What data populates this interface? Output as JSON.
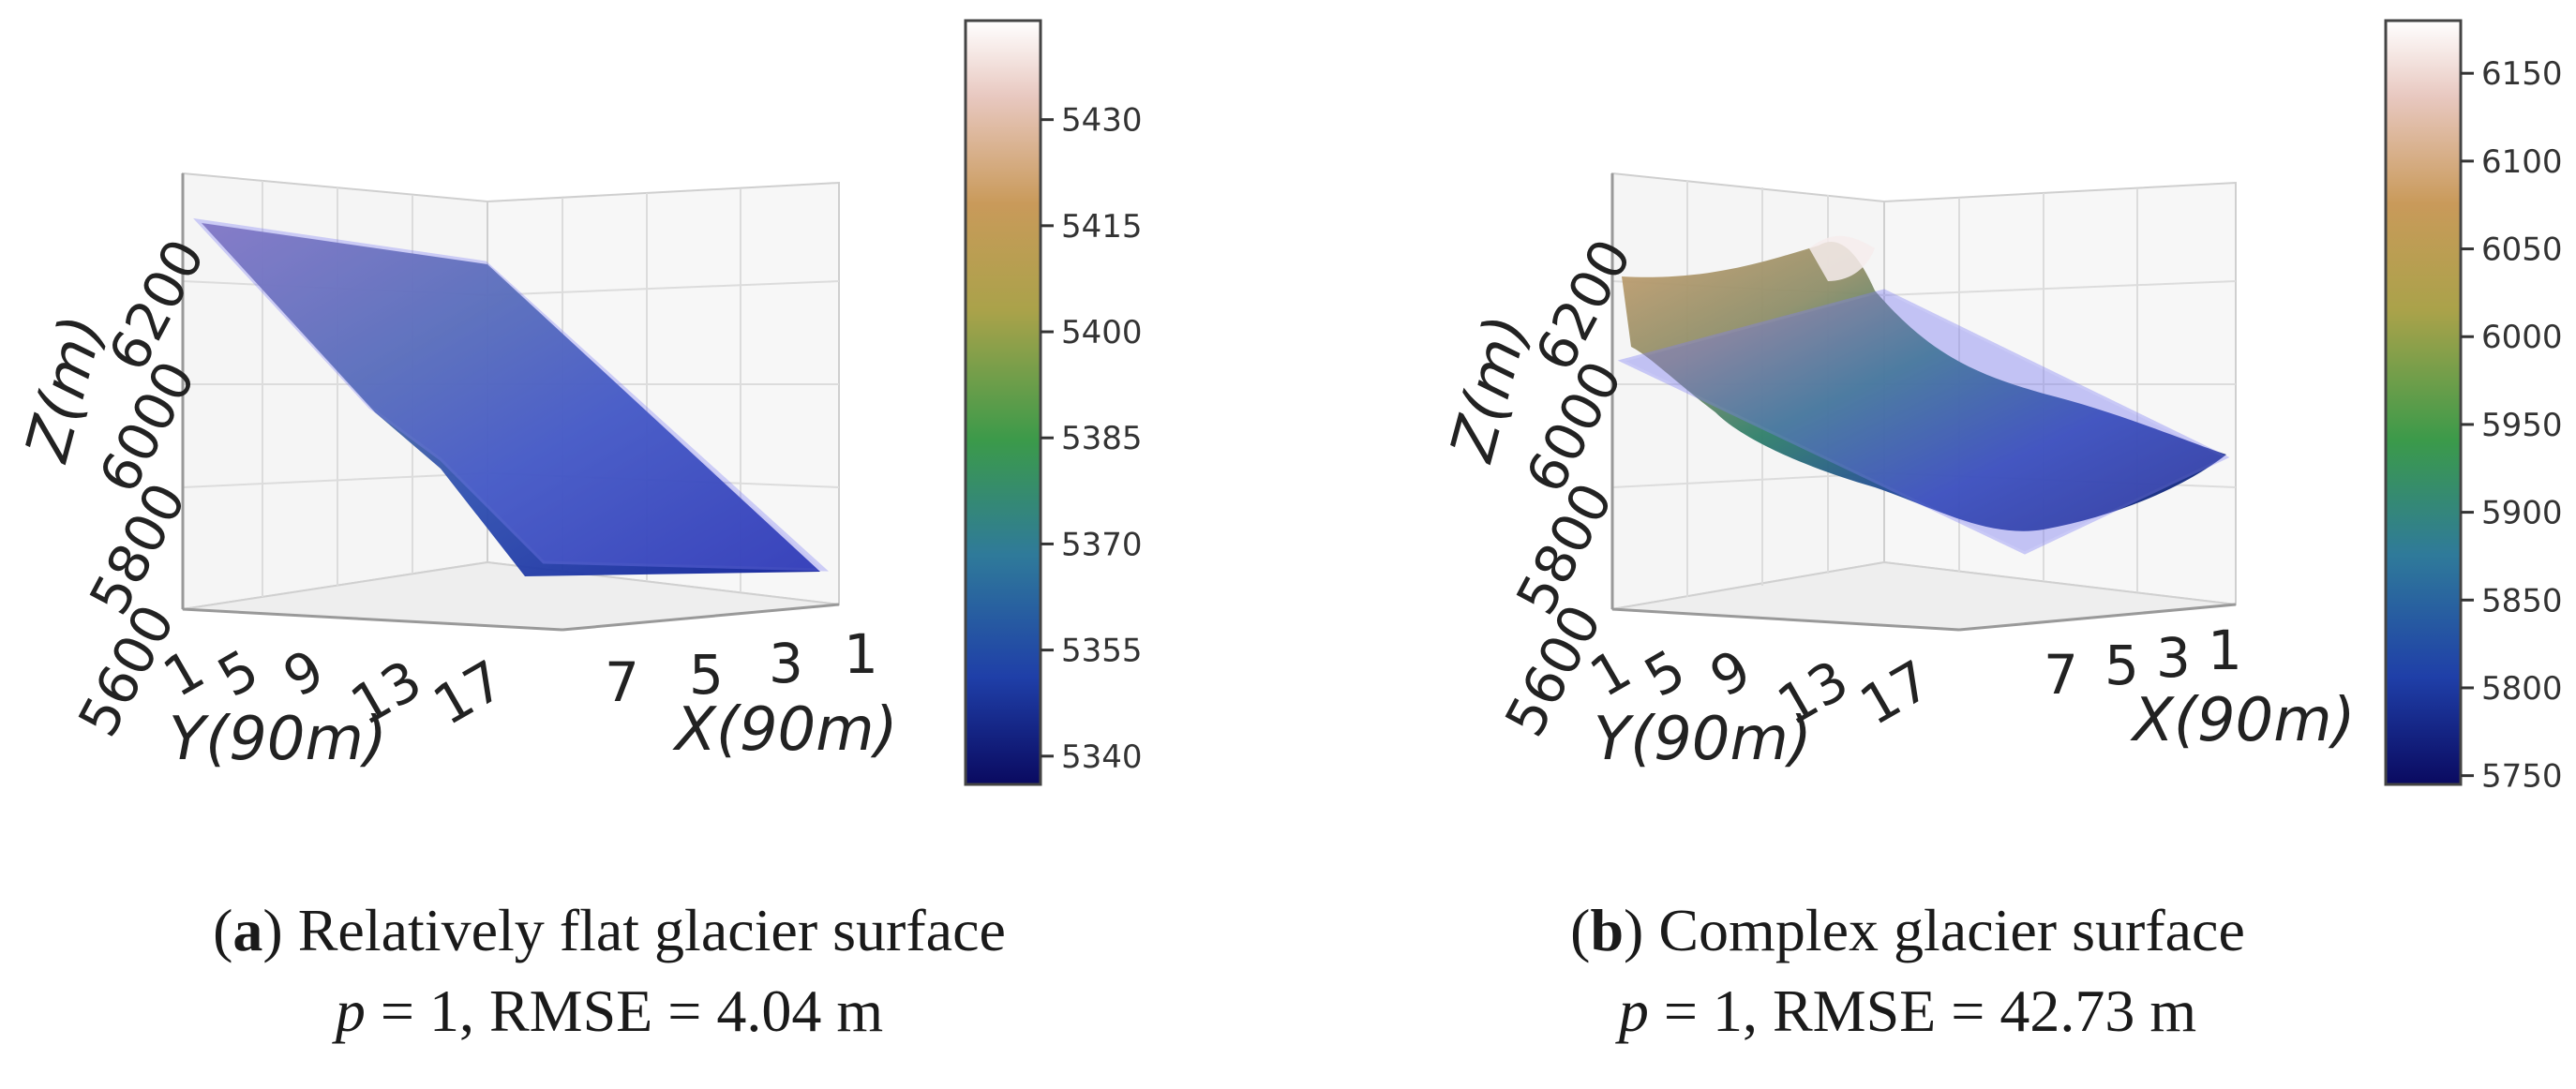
{
  "chart_data": [
    {
      "type": "surface3d",
      "id": "a",
      "zlabel": "Z(m)",
      "xlabel": "X(90m)",
      "ylabel": "Y(90m)",
      "z_ticks": [
        "5600",
        "5800",
        "6000",
        "6200"
      ],
      "y_ticks": [
        "1",
        "5",
        "9",
        "13",
        "17"
      ],
      "x_ticks": [
        "7",
        "5",
        "3",
        "1"
      ],
      "colorbar": {
        "ticks": [
          5340,
          5355,
          5370,
          5385,
          5400,
          5415,
          5430
        ],
        "min": 5336,
        "max": 5444,
        "colormap": "gist_earth"
      },
      "caption_label": "a",
      "caption_title": "Relatively flat glacier surface",
      "caption_p_symbol": "p",
      "caption_stats": "= 1, RMSE = 4.04 m"
    },
    {
      "type": "surface3d",
      "id": "b",
      "zlabel": "Z(m)",
      "xlabel": "X(90m)",
      "ylabel": "Y(90m)",
      "z_ticks": [
        "5600",
        "5800",
        "6000",
        "6200"
      ],
      "y_ticks": [
        "1",
        "5",
        "9",
        "13",
        "17"
      ],
      "x_ticks": [
        "7",
        "5",
        "3",
        "1"
      ],
      "colorbar": {
        "ticks": [
          5750,
          5800,
          5850,
          5900,
          5950,
          6000,
          6050,
          6100,
          6150
        ],
        "min": 5745,
        "max": 6180,
        "colormap": "gist_earth"
      },
      "caption_label": "b",
      "caption_title": "Complex glacier surface",
      "caption_p_symbol": "p",
      "caption_stats": "= 1, RMSE = 42.73 m"
    }
  ],
  "colors": {
    "cmap_stops": [
      "#0a0a60",
      "#1f3fa8",
      "#2f7a9a",
      "#3b9a4a",
      "#aaa24a",
      "#c99a5a",
      "#e8c8c0",
      "#ffffff"
    ],
    "plane": "#6f6ff0",
    "grid": "#d8d8d8",
    "pane": "#f3f3f3",
    "text": "#222222"
  }
}
